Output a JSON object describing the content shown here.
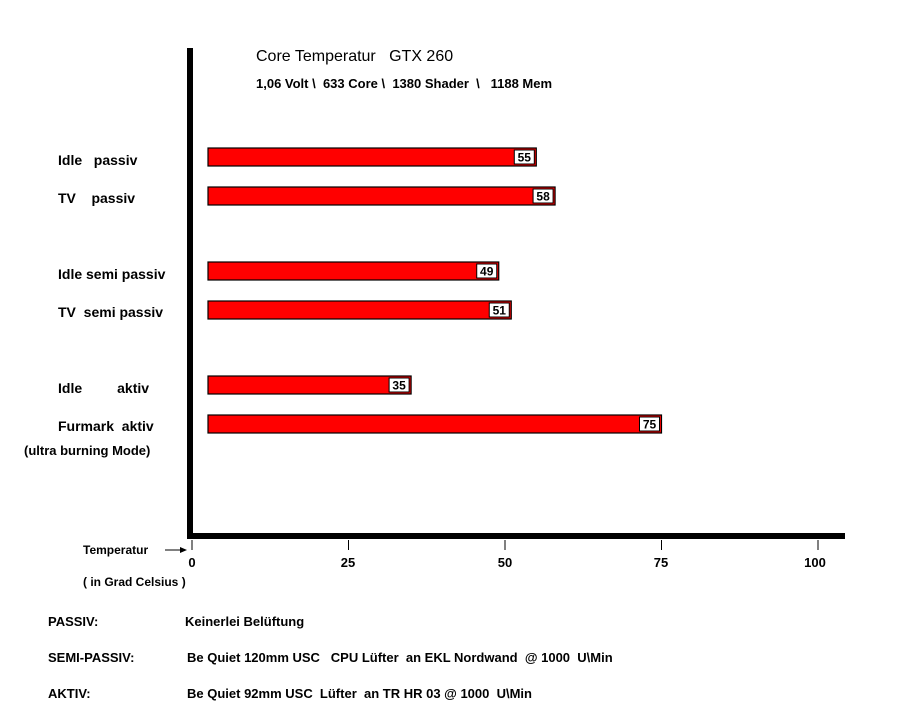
{
  "chart_data": {
    "type": "bar",
    "orientation": "horizontal",
    "title": "Core Temperatur   GTX 260",
    "subtitle": "1,06 Volt \\  633 Core \\  1380 Shader  \\   1188 Mem",
    "categories": [
      "Idle   passiv",
      "TV    passiv",
      "Idle semi passiv",
      "TV  semi passiv",
      "Idle         aktiv",
      "Furmark  aktiv"
    ],
    "category_note": "(ultra burning Mode)",
    "values": [
      55,
      58,
      49,
      51,
      35,
      75
    ],
    "xlim": [
      0,
      100
    ],
    "xticks": [
      "0",
      "25",
      "50",
      "75",
      "100"
    ],
    "xlabel": "Temperatur",
    "xlabel_unit": "( in Grad Celsius )",
    "bar_color": "#ff0000",
    "data_labels": true,
    "grid": false
  },
  "legend": [
    {
      "key": "PASSIV:",
      "value": "Keinerlei Belüftung"
    },
    {
      "key": "SEMI-PASSIV:",
      "value": "Be Quiet 120mm USC   CPU Lüfter  an EKL Nordwand  @ 1000  U\\Min"
    },
    {
      "key": "AKTIV:",
      "value": "Be Quiet 92mm USC  Lüfter  an TR HR 03 @ 1000  U\\Min"
    }
  ]
}
